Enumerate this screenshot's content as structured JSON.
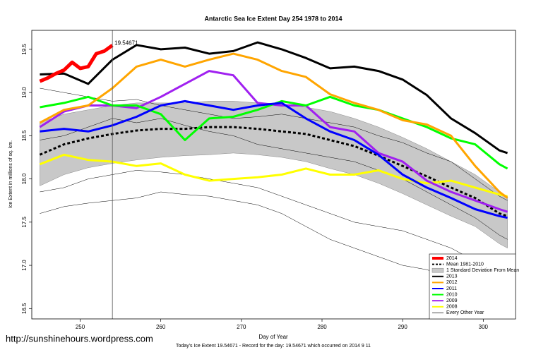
{
  "chart_data": {
    "type": "line",
    "title": "Antarctic Sea Ice Extent Day 254 1978 to 2014",
    "xlabel": "Day of Year",
    "ylabel": "Ice Extent in millions of sq. km.",
    "footer": "Today's Ice Extent  19.54671  - Record for the day: 19.54671 which occurred on 2014 9 11",
    "watermark": "http://sunshinehours.wordpress.com",
    "annotation": {
      "text": "19.54671",
      "x": 254,
      "y": 19.54671,
      "color": "#ff0000"
    },
    "vline": 254,
    "xlim": [
      244,
      304
    ],
    "ylim": [
      16.38,
      19.72
    ],
    "xticks": [
      250,
      260,
      270,
      280,
      290,
      300
    ],
    "yticks": [
      {
        "value": 16.5,
        "label": "16.5"
      },
      {
        "value": 17,
        "label": "17.0"
      },
      {
        "value": 17.5,
        "label": "17.5"
      },
      {
        "value": 18,
        "label": "18.0"
      },
      {
        "value": 18.5,
        "label": "18.5"
      },
      {
        "value": 19,
        "label": "19.0"
      },
      {
        "value": 19.5,
        "label": "19.5"
      }
    ],
    "legend": "bottom-right",
    "x": [
      245,
      248,
      251,
      254,
      257,
      260,
      263,
      266,
      269,
      272,
      275,
      278,
      281,
      284,
      287,
      290,
      293,
      296,
      299,
      302,
      303
    ],
    "band": {
      "name": "1 Standard Deviation From Mean",
      "color": "#c8c8c8",
      "upper": [
        18.65,
        18.75,
        18.8,
        18.85,
        18.88,
        18.88,
        18.88,
        18.9,
        18.9,
        18.88,
        18.87,
        18.83,
        18.78,
        18.7,
        18.6,
        18.48,
        18.35,
        18.2,
        18.05,
        17.85,
        17.8
      ],
      "lower": [
        17.92,
        18.05,
        18.13,
        18.18,
        18.22,
        18.25,
        18.27,
        18.28,
        18.3,
        18.28,
        18.25,
        18.2,
        18.12,
        18.05,
        17.95,
        17.83,
        17.7,
        17.57,
        17.45,
        17.25,
        17.2
      ]
    },
    "other_years": {
      "name": "Every Other Year",
      "color": "#000000",
      "values": [
        [
          17.6,
          17.68,
          17.72,
          17.75,
          17.78,
          17.85,
          17.82,
          17.8,
          17.75,
          17.7,
          17.6,
          17.45,
          17.3,
          17.2,
          17.1,
          17.0,
          16.95,
          16.85,
          16.7,
          16.55,
          16.48
        ],
        [
          19.05,
          19.0,
          18.95,
          18.9,
          18.92,
          18.85,
          18.8,
          18.75,
          18.7,
          18.72,
          18.75,
          18.7,
          18.65,
          18.6,
          18.5,
          18.42,
          18.3,
          18.2,
          18.0,
          17.8,
          17.75
        ],
        [
          17.85,
          17.9,
          18.0,
          18.05,
          18.1,
          18.08,
          18.05,
          18.0,
          17.95,
          17.9,
          17.8,
          17.7,
          17.6,
          17.5,
          17.45,
          17.4,
          17.3,
          17.2,
          17.05,
          16.9,
          16.85
        ],
        [
          18.45,
          18.5,
          18.6,
          18.7,
          18.65,
          18.7,
          18.62,
          18.55,
          18.5,
          18.4,
          18.35,
          18.3,
          18.25,
          18.2,
          18.1,
          18.0,
          17.85,
          17.7,
          17.55,
          17.35,
          17.3
        ]
      ]
    },
    "mean": {
      "name": "Mean 1981-2010",
      "color": "#000000",
      "values": [
        18.28,
        18.4,
        18.47,
        18.52,
        18.56,
        18.58,
        18.58,
        18.6,
        18.6,
        18.58,
        18.55,
        18.52,
        18.45,
        18.38,
        18.27,
        18.15,
        18.03,
        17.9,
        17.78,
        17.6,
        17.57
      ]
    },
    "series": [
      {
        "name": "2014",
        "color": "#ff0000",
        "x": [
          245,
          246,
          247,
          248,
          249,
          250,
          251,
          252,
          253,
          254
        ],
        "values": [
          19.13,
          19.17,
          19.22,
          19.26,
          19.35,
          19.28,
          19.3,
          19.45,
          19.48,
          19.54671
        ]
      },
      {
        "name": "2013",
        "color": "#000000",
        "values": [
          19.21,
          19.22,
          19.1,
          19.38,
          19.55,
          19.5,
          19.52,
          19.45,
          19.48,
          19.58,
          19.5,
          19.4,
          19.28,
          19.3,
          19.25,
          19.15,
          18.97,
          18.7,
          18.53,
          18.33,
          18.3
        ]
      },
      {
        "name": "2012",
        "color": "#ffa500",
        "values": [
          18.65,
          18.8,
          18.85,
          19.05,
          19.3,
          19.38,
          19.3,
          19.38,
          19.45,
          19.38,
          19.25,
          19.18,
          18.98,
          18.88,
          18.8,
          18.68,
          18.63,
          18.5,
          18.15,
          17.85,
          17.78
        ]
      },
      {
        "name": "2011",
        "color": "#0000ff",
        "values": [
          18.55,
          18.58,
          18.55,
          18.62,
          18.72,
          18.85,
          18.9,
          18.85,
          18.8,
          18.85,
          18.88,
          18.7,
          18.55,
          18.45,
          18.28,
          18.05,
          17.9,
          17.78,
          17.65,
          17.57,
          17.55
        ]
      },
      {
        "name": "2010",
        "color": "#00ff00",
        "values": [
          18.83,
          18.88,
          18.95,
          18.85,
          18.85,
          18.75,
          18.45,
          18.7,
          18.72,
          18.8,
          18.9,
          18.85,
          18.95,
          18.85,
          18.8,
          18.7,
          18.6,
          18.47,
          18.4,
          18.17,
          18.12
        ]
      },
      {
        "name": "2009",
        "color": "#a020f0",
        "values": [
          18.6,
          18.78,
          18.85,
          18.85,
          18.82,
          18.95,
          19.1,
          19.25,
          19.2,
          18.88,
          18.85,
          18.85,
          18.6,
          18.55,
          18.3,
          18.2,
          17.98,
          17.85,
          17.75,
          17.65,
          17.62
        ]
      },
      {
        "name": "2008",
        "color": "#ffff00",
        "values": [
          18.17,
          18.28,
          18.22,
          18.2,
          18.15,
          18.18,
          18.05,
          17.98,
          18.0,
          18.02,
          18.05,
          18.12,
          18.05,
          18.05,
          18.1,
          18.0,
          17.95,
          17.98,
          17.9,
          17.82,
          17.8
        ]
      }
    ]
  }
}
